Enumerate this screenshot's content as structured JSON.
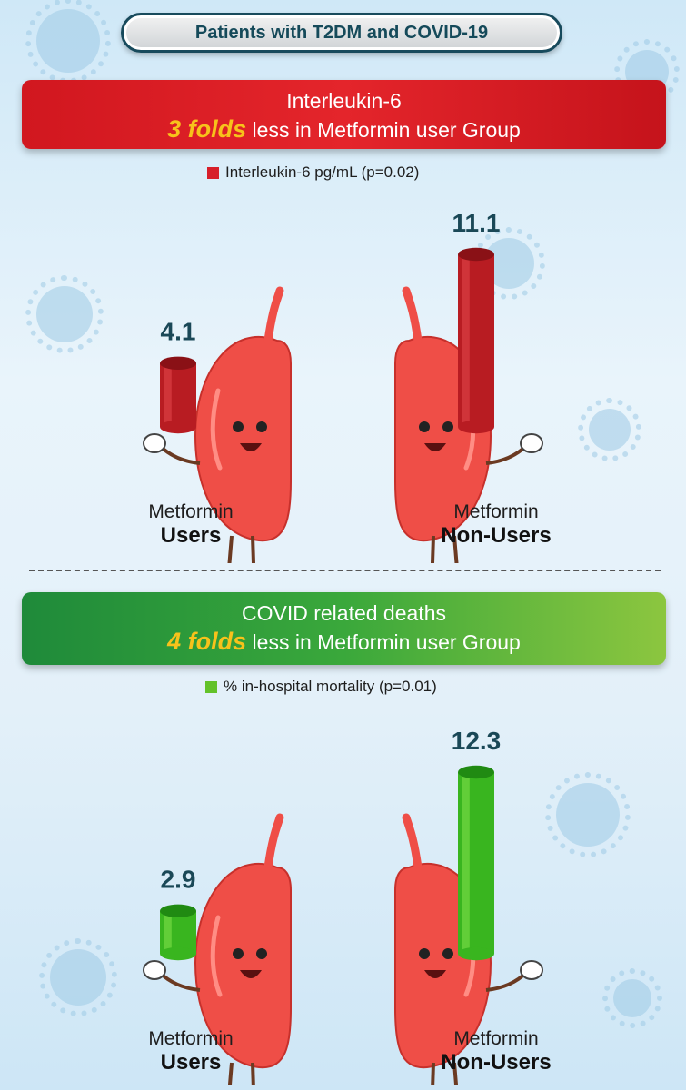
{
  "header": {
    "title": "Patients with T2DM and COVID-19"
  },
  "panels": [
    {
      "banner_line1": "Interleukin-6",
      "banner_emphasis": "3 folds",
      "banner_rest": " less in Metformin user Group",
      "legend": "Interleukin-6 pg/mL (p=0.02)",
      "legend_color": "#d71f2a"
    },
    {
      "banner_line1": "COVID related deaths",
      "banner_emphasis": "4 folds",
      "banner_rest": " less in Metformin user Group",
      "legend": "% in-hospital mortality (p=0.01)",
      "legend_color": "#63c22a"
    }
  ],
  "chart_data": [
    {
      "type": "bar",
      "series": [
        {
          "name": "Interleukin-6 pg/mL (p=0.02)",
          "values": [
            4.1,
            11.1
          ]
        }
      ],
      "categories": [
        "Metformin Users",
        "Metformin Non-Users"
      ],
      "category_lines": [
        [
          "Metformin",
          "Users"
        ],
        [
          "Metformin",
          "Non-Users"
        ]
      ],
      "value_labels": [
        "4.1",
        "11.1"
      ],
      "colors": {
        "bar": "#b81c22",
        "bar_light": "#e0454a",
        "bar_dark": "#8a1116"
      }
    },
    {
      "type": "bar",
      "series": [
        {
          "name": "% in-hospital mortality (p=0.01)",
          "values": [
            2.9,
            12.3
          ]
        }
      ],
      "categories": [
        "Metformin Users",
        "Metformin Non-Users"
      ],
      "category_lines": [
        [
          "Metformin",
          "Users"
        ],
        [
          "Metformin",
          "Non-Users"
        ]
      ],
      "value_labels": [
        "2.9",
        "12.3"
      ],
      "colors": {
        "bar": "#39b51f",
        "bar_light": "#7fe04a",
        "bar_dark": "#208a12"
      }
    }
  ]
}
